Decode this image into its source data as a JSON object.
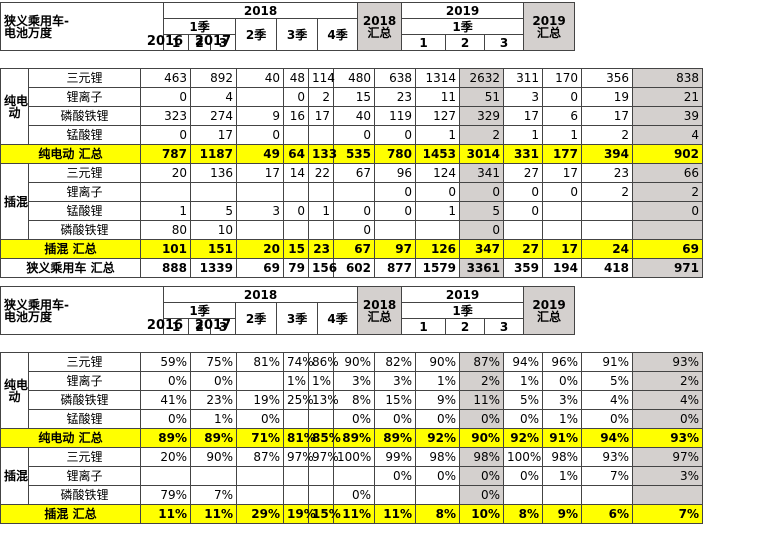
{
  "table1": {
    "title_l1": "狭义乘用车-",
    "title_l2": "电池万度",
    "h2016": "2016",
    "h2017": "2017",
    "h2018": "2018",
    "hq1": "1季",
    "hm1": "1",
    "hm2": "2",
    "hm3": "3",
    "hq2": "2季",
    "hq3": "3季",
    "hq4": "4季",
    "h2018sum_l1": "2018",
    "h2018sum_l2": "汇总",
    "h2019": "2019",
    "h2019q1": "1季",
    "h2019m1": "1",
    "h2019m2": "2",
    "h2019m3": "3",
    "h2019sum_l1": "2019",
    "h2019sum_l2": "汇总",
    "bev_label_l1": "纯电",
    "bev_label_l2": "动",
    "bev_rows": [
      {
        "name": "三元锂",
        "v": [
          "463",
          "892",
          "40",
          "48",
          "114",
          "480",
          "638",
          "1314",
          "2632",
          "311",
          "170",
          "356",
          "838"
        ]
      },
      {
        "name": "锂离子",
        "v": [
          "0",
          "4",
          "",
          "0",
          "2",
          "15",
          "23",
          "11",
          "51",
          "3",
          "0",
          "19",
          "21"
        ]
      },
      {
        "name": "磷酸铁锂",
        "v": [
          "323",
          "274",
          "9",
          "16",
          "17",
          "40",
          "119",
          "127",
          "329",
          "17",
          "6",
          "17",
          "39"
        ]
      },
      {
        "name": "锰酸锂",
        "v": [
          "0",
          "17",
          "0",
          "",
          "",
          "0",
          "0",
          "1",
          "2",
          "1",
          "1",
          "2",
          "4"
        ]
      }
    ],
    "bev_sum": {
      "name": "纯电动 汇总",
      "v": [
        "787",
        "1187",
        "49",
        "64",
        "133",
        "535",
        "780",
        "1453",
        "3014",
        "331",
        "177",
        "394",
        "902"
      ]
    },
    "phev_label": "插混",
    "phev_rows": [
      {
        "name": "三元锂",
        "v": [
          "20",
          "136",
          "17",
          "14",
          "22",
          "67",
          "96",
          "124",
          "341",
          "27",
          "17",
          "23",
          "66"
        ]
      },
      {
        "name": "锂离子",
        "v": [
          "",
          "",
          "",
          "",
          "",
          "",
          "0",
          "0",
          "0",
          "0",
          "0",
          "2",
          "2"
        ]
      },
      {
        "name": "锰酸锂",
        "v": [
          "1",
          "5",
          "3",
          "0",
          "1",
          "0",
          "0",
          "1",
          "5",
          "0",
          "",
          "",
          "0"
        ]
      },
      {
        "name": "磷酸铁锂",
        "v": [
          "80",
          "10",
          "",
          "",
          "",
          "0",
          "",
          "",
          "0",
          "",
          "",
          "",
          ""
        ]
      }
    ],
    "phev_sum": {
      "name": "插混 汇总",
      "v": [
        "101",
        "151",
        "20",
        "15",
        "23",
        "67",
        "97",
        "126",
        "347",
        "27",
        "17",
        "24",
        "69"
      ]
    },
    "total": {
      "name": "狭义乘用车 汇总",
      "v": [
        "888",
        "1339",
        "69",
        "79",
        "156",
        "602",
        "877",
        "1579",
        "3361",
        "359",
        "194",
        "418",
        "971"
      ]
    }
  },
  "table2": {
    "title_l1": "狭义乘用车-",
    "title_l2": "电池万度",
    "h2016": "2016",
    "h2017": "2017",
    "h2018": "2018",
    "hq1": "1季",
    "hm1": "1",
    "hm2": "2",
    "hm3": "3",
    "hq2": "2季",
    "hq3": "3季",
    "hq4": "4季",
    "h2018sum_l1": "2018",
    "h2018sum_l2": "汇总",
    "h2019": "2019",
    "h2019q1": "1季",
    "h2019m1": "1",
    "h2019m2": "2",
    "h2019m3": "3",
    "h2019sum_l1": "2019",
    "h2019sum_l2": "汇总",
    "bev_label_l1": "纯电",
    "bev_label_l2": "动",
    "bev_rows": [
      {
        "name": "三元锂",
        "v": [
          "59%",
          "75%",
          "81%",
          "74%",
          "86%",
          "90%",
          "82%",
          "90%",
          "87%",
          "94%",
          "96%",
          "91%",
          "93%"
        ]
      },
      {
        "name": "锂离子",
        "v": [
          "0%",
          "0%",
          "",
          "1%",
          "1%",
          "3%",
          "3%",
          "1%",
          "2%",
          "1%",
          "0%",
          "5%",
          "2%"
        ]
      },
      {
        "name": "磷酸铁锂",
        "v": [
          "41%",
          "23%",
          "19%",
          "25%",
          "13%",
          "8%",
          "15%",
          "9%",
          "11%",
          "5%",
          "3%",
          "4%",
          "4%"
        ]
      },
      {
        "name": "锰酸锂",
        "v": [
          "0%",
          "1%",
          "0%",
          "",
          "",
          "0%",
          "0%",
          "0%",
          "0%",
          "0%",
          "1%",
          "0%",
          "0%"
        ]
      }
    ],
    "bev_sum": {
      "name": "纯电动 汇总",
      "v": [
        "89%",
        "89%",
        "71%",
        "81%",
        "85%",
        "89%",
        "89%",
        "92%",
        "90%",
        "92%",
        "91%",
        "94%",
        "93%"
      ]
    },
    "phev_label": "插混",
    "phev_rows": [
      {
        "name": "三元锂",
        "v": [
          "20%",
          "90%",
          "87%",
          "97%",
          "97%",
          "100%",
          "99%",
          "98%",
          "98%",
          "100%",
          "98%",
          "93%",
          "97%"
        ]
      },
      {
        "name": "锂离子",
        "v": [
          "",
          "",
          "",
          "",
          "",
          "",
          "0%",
          "0%",
          "0%",
          "0%",
          "1%",
          "7%",
          "3%"
        ]
      },
      {
        "name": "磷酸铁锂",
        "v": [
          "79%",
          "7%",
          "",
          "",
          "",
          "0%",
          "",
          "",
          "0%",
          "",
          "",
          "",
          ""
        ]
      }
    ],
    "phev_sum": {
      "name": "插混 汇总",
      "v": [
        "11%",
        "11%",
        "29%",
        "19%",
        "15%",
        "11%",
        "11%",
        "8%",
        "10%",
        "8%",
        "9%",
        "6%",
        "7%"
      ]
    }
  }
}
